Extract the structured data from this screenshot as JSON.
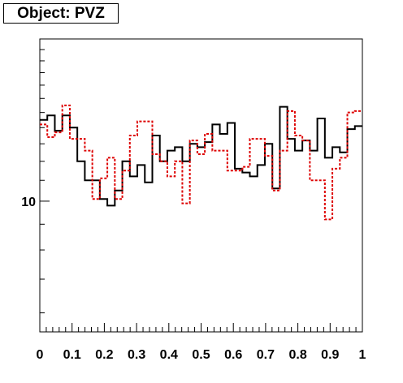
{
  "title": "Object: PVZ",
  "chart_data": {
    "type": "step",
    "title": "Object: PVZ",
    "xlim": [
      0,
      1
    ],
    "ylim": [
      5.5,
      21
    ],
    "yscale": "log",
    "x_ticks": [
      "0",
      "0.1",
      "0.2",
      "0.3",
      "0.4",
      "0.5",
      "0.6",
      "0.7",
      "0.8",
      "0.9",
      "1"
    ],
    "y_ticks": [
      "10"
    ],
    "series": [
      {
        "color": "#000000",
        "style": "solid",
        "values": [
          14.5,
          14.8,
          13.8,
          14.8,
          14.0,
          12.0,
          11.0,
          11.0,
          10.1,
          9.8,
          10.5,
          12.0,
          11.2,
          11.8,
          10.9,
          13.5,
          12.0,
          12.6,
          12.8,
          12.0,
          13.0,
          12.8,
          13.1,
          14.2,
          13.6,
          14.3,
          11.6,
          11.4,
          11.2,
          11.8,
          13.0,
          10.6,
          15.4,
          13.3,
          12.6,
          13.2,
          12.6,
          14.6,
          12.2,
          12.8,
          12.5,
          13.9,
          14.1
        ]
      },
      {
        "color": "#dd0000",
        "style": "dotted",
        "values": [
          14.2,
          13.4,
          13.7,
          15.5,
          13.3,
          13.3,
          12.6,
          10.1,
          11.1,
          12.2,
          10.1,
          11.5,
          13.5,
          14.4,
          14.4,
          12.4,
          12.0,
          11.2,
          12.0,
          9.9,
          13.2,
          12.4,
          13.6,
          12.6,
          12.6,
          11.5,
          11.5,
          11.7,
          13.3,
          13.3,
          12.3,
          10.5,
          12.6,
          15.1,
          13.5,
          13.2,
          11.0,
          11.0,
          9.2,
          11.6,
          12.2,
          15.0,
          15.1
        ]
      }
    ]
  }
}
